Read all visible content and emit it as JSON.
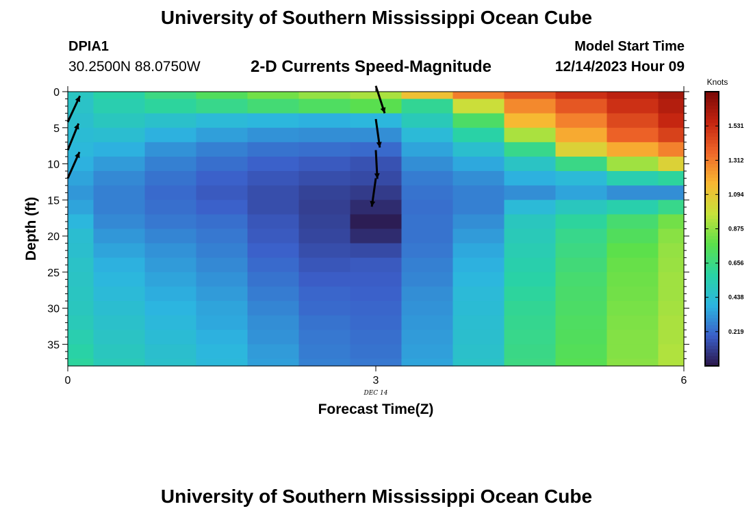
{
  "header": {
    "title": "University of Southern Mississippi Ocean Cube",
    "station_id": "DPIA1",
    "location": "30.2500N  88.0750W",
    "subtitle": "2-D Currents Speed-Magnitude",
    "model_start_label": "Model Start Time",
    "model_start_value": "12/14/2023 Hour 09"
  },
  "footer": {
    "title": "University of Southern Mississippi Ocean Cube"
  },
  "chart_data": {
    "type": "heatmap",
    "title": "2-D Currents Speed-Magnitude",
    "xlabel": "Forecast Time(Z)",
    "ylabel": "Depth (ft)",
    "x_ticks": [
      0,
      3,
      6
    ],
    "x_date_label": "DEC 14",
    "y_ticks": [
      0,
      5,
      10,
      15,
      20,
      25,
      30,
      35
    ],
    "xlim": [
      0,
      6
    ],
    "ylim": [
      38,
      0
    ],
    "x": [
      0,
      0.5,
      1,
      1.5,
      2,
      2.5,
      3,
      3.5,
      4,
      4.5,
      5,
      5.5,
      6
    ],
    "depth_ft": [
      0,
      2,
      4,
      6,
      8,
      10,
      12,
      14,
      16,
      18,
      20,
      22,
      24,
      26,
      28,
      30,
      32,
      34,
      36,
      38
    ],
    "values_knots": [
      [
        0.49,
        0.58,
        0.66,
        0.74,
        0.82,
        0.88,
        0.92,
        1.13,
        1.31,
        1.42,
        1.52,
        1.58,
        1.64
      ],
      [
        0.47,
        0.55,
        0.6,
        0.64,
        0.69,
        0.73,
        0.77,
        0.62,
        0.99,
        1.28,
        1.41,
        1.52,
        1.6
      ],
      [
        0.45,
        0.5,
        0.46,
        0.42,
        0.4,
        0.38,
        0.4,
        0.52,
        0.72,
        1.16,
        1.3,
        1.45,
        1.55
      ],
      [
        0.43,
        0.44,
        0.38,
        0.34,
        0.31,
        0.3,
        0.3,
        0.42,
        0.58,
        0.92,
        1.2,
        1.38,
        1.47
      ],
      [
        0.41,
        0.38,
        0.31,
        0.27,
        0.24,
        0.23,
        0.22,
        0.35,
        0.45,
        0.64,
        1.05,
        1.2,
        1.3
      ],
      [
        0.38,
        0.33,
        0.27,
        0.23,
        0.2,
        0.18,
        0.16,
        0.3,
        0.36,
        0.48,
        0.65,
        0.9,
        1.05
      ],
      [
        0.35,
        0.29,
        0.24,
        0.2,
        0.17,
        0.15,
        0.14,
        0.26,
        0.3,
        0.38,
        0.42,
        0.55,
        0.6
      ],
      [
        0.32,
        0.27,
        0.22,
        0.18,
        0.15,
        0.12,
        0.1,
        0.24,
        0.27,
        0.3,
        0.35,
        0.3,
        0.3
      ],
      [
        0.35,
        0.27,
        0.23,
        0.2,
        0.15,
        0.11,
        0.06,
        0.23,
        0.27,
        0.42,
        0.5,
        0.56,
        0.64
      ],
      [
        0.4,
        0.29,
        0.25,
        0.23,
        0.17,
        0.12,
        0.02,
        0.24,
        0.3,
        0.5,
        0.6,
        0.7,
        0.82
      ],
      [
        0.44,
        0.32,
        0.28,
        0.25,
        0.18,
        0.13,
        0.06,
        0.24,
        0.33,
        0.52,
        0.64,
        0.74,
        0.86
      ],
      [
        0.45,
        0.35,
        0.31,
        0.27,
        0.2,
        0.15,
        0.14,
        0.25,
        0.36,
        0.54,
        0.66,
        0.78,
        0.88
      ],
      [
        0.47,
        0.38,
        0.33,
        0.29,
        0.22,
        0.17,
        0.18,
        0.27,
        0.38,
        0.56,
        0.68,
        0.8,
        0.89
      ],
      [
        0.48,
        0.4,
        0.35,
        0.31,
        0.24,
        0.19,
        0.19,
        0.28,
        0.4,
        0.58,
        0.7,
        0.81,
        0.9
      ],
      [
        0.49,
        0.42,
        0.37,
        0.33,
        0.26,
        0.21,
        0.2,
        0.3,
        0.42,
        0.6,
        0.71,
        0.82,
        0.9
      ],
      [
        0.5,
        0.44,
        0.39,
        0.35,
        0.28,
        0.22,
        0.21,
        0.31,
        0.43,
        0.62,
        0.72,
        0.83,
        0.91
      ],
      [
        0.52,
        0.46,
        0.41,
        0.36,
        0.3,
        0.24,
        0.22,
        0.32,
        0.44,
        0.63,
        0.73,
        0.84,
        0.92
      ],
      [
        0.55,
        0.48,
        0.43,
        0.38,
        0.31,
        0.25,
        0.23,
        0.33,
        0.45,
        0.64,
        0.74,
        0.85,
        0.92
      ],
      [
        0.58,
        0.5,
        0.45,
        0.4,
        0.33,
        0.26,
        0.24,
        0.34,
        0.46,
        0.65,
        0.75,
        0.85,
        0.93
      ],
      [
        0.6,
        0.52,
        0.46,
        0.41,
        0.34,
        0.27,
        0.25,
        0.35,
        0.47,
        0.66,
        0.76,
        0.86,
        0.93
      ]
    ],
    "colorbar": {
      "label": "Knots",
      "min": 0,
      "max": 1.75,
      "ticks": [
        0.219,
        0.438,
        0.656,
        0.875,
        1.094,
        1.312,
        1.531
      ]
    },
    "vectors": [
      {
        "x": 0,
        "depth": 4.2,
        "angle_deg": 25
      },
      {
        "x": 0,
        "depth": 8.1,
        "angle_deg": 22
      },
      {
        "x": 0,
        "depth": 12.0,
        "angle_deg": 24
      },
      {
        "x": 3,
        "depth": -0.8,
        "angle_deg": 162
      },
      {
        "x": 3,
        "depth": 3.8,
        "angle_deg": 172
      },
      {
        "x": 3,
        "depth": 8.1,
        "angle_deg": 177
      },
      {
        "x": 3,
        "depth": 12.0,
        "angle_deg": 188
      }
    ],
    "colors": {
      "arrow": "#000000",
      "colormap": [
        "#2a1547",
        "#3b5fc9",
        "#2cb5e0",
        "#29d3a5",
        "#5be04b",
        "#c7e23b",
        "#f8b832",
        "#f0682a",
        "#c42410",
        "#7a0a08"
      ]
    }
  }
}
